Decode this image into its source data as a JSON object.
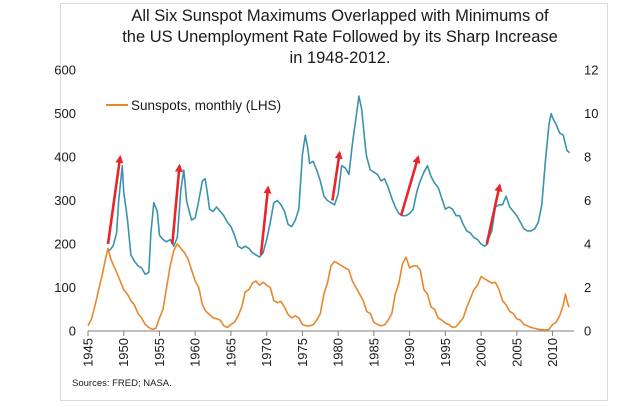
{
  "chart_data": {
    "type": "line",
    "title_lines": [
      "All Six Sunspot Maximums Overlapped with Minimums of",
      "the US Unemployment Rate Followed by its Sharp Increase",
      "in 1948-2012."
    ],
    "x_ticks": [
      "1945",
      "1950",
      "1955",
      "1960",
      "1965",
      "1970",
      "1975",
      "1980",
      "1985",
      "1990",
      "1995",
      "2000",
      "2005",
      "2010"
    ],
    "xlim": [
      1945,
      2013
    ],
    "y_left": {
      "lim": [
        0,
        600
      ],
      "ticks": [
        "0",
        "100",
        "200",
        "300",
        "400",
        "500",
        "600"
      ]
    },
    "y_right": {
      "lim": [
        0,
        12
      ],
      "ticks": [
        "0",
        "2",
        "4",
        "6",
        "8",
        "10",
        "12"
      ]
    },
    "legend": {
      "position": "top-left",
      "label": "Sunspots, monthly (LHS)"
    },
    "source": "Sources:  FRED; NASA.",
    "colors": {
      "sunspots": "#e8872b",
      "unemployment": "#3a93ad",
      "arrows": "#e8262a"
    },
    "series": [
      {
        "name": "Sunspots, monthly (LHS)",
        "axis": "left",
        "points": [
          [
            1945.0,
            12
          ],
          [
            1945.5,
            28
          ],
          [
            1946.0,
            60
          ],
          [
            1946.5,
            95
          ],
          [
            1947.0,
            130
          ],
          [
            1947.5,
            170
          ],
          [
            1947.8,
            190
          ],
          [
            1948.2,
            165
          ],
          [
            1948.6,
            150
          ],
          [
            1949.0,
            135
          ],
          [
            1949.5,
            115
          ],
          [
            1950.0,
            95
          ],
          [
            1950.5,
            85
          ],
          [
            1951.0,
            70
          ],
          [
            1951.5,
            60
          ],
          [
            1952.0,
            40
          ],
          [
            1952.5,
            30
          ],
          [
            1953.0,
            15
          ],
          [
            1953.5,
            8
          ],
          [
            1954.0,
            4
          ],
          [
            1954.5,
            6
          ],
          [
            1955.0,
            30
          ],
          [
            1955.5,
            50
          ],
          [
            1956.0,
            100
          ],
          [
            1956.5,
            150
          ],
          [
            1957.0,
            185
          ],
          [
            1957.5,
            200
          ],
          [
            1958.0,
            190
          ],
          [
            1958.5,
            180
          ],
          [
            1959.0,
            165
          ],
          [
            1959.5,
            140
          ],
          [
            1960.0,
            115
          ],
          [
            1960.5,
            100
          ],
          [
            1961.0,
            60
          ],
          [
            1961.5,
            45
          ],
          [
            1962.0,
            38
          ],
          [
            1962.5,
            30
          ],
          [
            1963.0,
            28
          ],
          [
            1963.5,
            25
          ],
          [
            1964.0,
            12
          ],
          [
            1964.5,
            8
          ],
          [
            1965.0,
            15
          ],
          [
            1965.5,
            20
          ],
          [
            1966.0,
            35
          ],
          [
            1966.5,
            55
          ],
          [
            1967.0,
            90
          ],
          [
            1967.5,
            95
          ],
          [
            1968.0,
            110
          ],
          [
            1968.5,
            115
          ],
          [
            1969.0,
            105
          ],
          [
            1969.5,
            112
          ],
          [
            1970.0,
            105
          ],
          [
            1970.5,
            100
          ],
          [
            1971.0,
            70
          ],
          [
            1971.5,
            65
          ],
          [
            1972.0,
            68
          ],
          [
            1972.5,
            55
          ],
          [
            1973.0,
            38
          ],
          [
            1973.5,
            30
          ],
          [
            1974.0,
            35
          ],
          [
            1974.5,
            30
          ],
          [
            1975.0,
            15
          ],
          [
            1975.5,
            12
          ],
          [
            1976.0,
            12
          ],
          [
            1976.5,
            14
          ],
          [
            1977.0,
            25
          ],
          [
            1977.5,
            40
          ],
          [
            1978.0,
            85
          ],
          [
            1978.5,
            110
          ],
          [
            1979.0,
            150
          ],
          [
            1979.5,
            160
          ],
          [
            1980.0,
            155
          ],
          [
            1980.5,
            150
          ],
          [
            1981.0,
            145
          ],
          [
            1981.5,
            140
          ],
          [
            1982.0,
            115
          ],
          [
            1982.5,
            100
          ],
          [
            1983.0,
            85
          ],
          [
            1983.5,
            70
          ],
          [
            1984.0,
            45
          ],
          [
            1984.5,
            40
          ],
          [
            1985.0,
            20
          ],
          [
            1985.5,
            15
          ],
          [
            1986.0,
            12
          ],
          [
            1986.5,
            14
          ],
          [
            1987.0,
            25
          ],
          [
            1987.5,
            40
          ],
          [
            1988.0,
            85
          ],
          [
            1988.5,
            110
          ],
          [
            1989.0,
            155
          ],
          [
            1989.5,
            170
          ],
          [
            1990.0,
            145
          ],
          [
            1990.5,
            150
          ],
          [
            1991.0,
            150
          ],
          [
            1991.5,
            140
          ],
          [
            1992.0,
            95
          ],
          [
            1992.5,
            85
          ],
          [
            1993.0,
            55
          ],
          [
            1993.5,
            50
          ],
          [
            1994.0,
            30
          ],
          [
            1994.5,
            25
          ],
          [
            1995.0,
            18
          ],
          [
            1995.5,
            15
          ],
          [
            1996.0,
            8
          ],
          [
            1996.5,
            10
          ],
          [
            1997.0,
            20
          ],
          [
            1997.5,
            30
          ],
          [
            1998.0,
            55
          ],
          [
            1998.5,
            75
          ],
          [
            1999.0,
            95
          ],
          [
            1999.5,
            105
          ],
          [
            2000.0,
            125
          ],
          [
            2000.5,
            120
          ],
          [
            2001.0,
            115
          ],
          [
            2001.5,
            110
          ],
          [
            2002.0,
            112
          ],
          [
            2002.5,
            95
          ],
          [
            2003.0,
            70
          ],
          [
            2003.5,
            60
          ],
          [
            2004.0,
            45
          ],
          [
            2004.5,
            40
          ],
          [
            2005.0,
            28
          ],
          [
            2005.5,
            25
          ],
          [
            2006.0,
            15
          ],
          [
            2006.5,
            12
          ],
          [
            2007.0,
            8
          ],
          [
            2007.5,
            6
          ],
          [
            2008.0,
            4
          ],
          [
            2008.5,
            3
          ],
          [
            2009.0,
            2
          ],
          [
            2009.5,
            4
          ],
          [
            2010.0,
            15
          ],
          [
            2010.5,
            20
          ],
          [
            2011.0,
            35
          ],
          [
            2011.5,
            60
          ],
          [
            2011.8,
            85
          ],
          [
            2012.0,
            70
          ],
          [
            2012.3,
            55
          ]
        ]
      },
      {
        "name": "",
        "axis": "right",
        "points": [
          [
            1948.0,
            3.7
          ],
          [
            1948.5,
            3.9
          ],
          [
            1949.0,
            4.5
          ],
          [
            1949.3,
            6.0
          ],
          [
            1949.8,
            7.6
          ],
          [
            1950.0,
            6.4
          ],
          [
            1950.5,
            5.2
          ],
          [
            1951.0,
            3.5
          ],
          [
            1951.5,
            3.2
          ],
          [
            1952.0,
            3.0
          ],
          [
            1952.5,
            2.9
          ],
          [
            1953.0,
            2.6
          ],
          [
            1953.5,
            2.7
          ],
          [
            1953.8,
            4.5
          ],
          [
            1954.2,
            5.9
          ],
          [
            1954.7,
            5.5
          ],
          [
            1955.0,
            4.4
          ],
          [
            1955.5,
            4.2
          ],
          [
            1956.0,
            4.1
          ],
          [
            1956.5,
            4.2
          ],
          [
            1957.0,
            3.9
          ],
          [
            1957.5,
            4.3
          ],
          [
            1958.0,
            6.5
          ],
          [
            1958.4,
            7.4
          ],
          [
            1958.8,
            6.0
          ],
          [
            1959.0,
            5.7
          ],
          [
            1959.5,
            5.1
          ],
          [
            1960.0,
            5.2
          ],
          [
            1960.5,
            6.0
          ],
          [
            1961.0,
            6.9
          ],
          [
            1961.4,
            7.0
          ],
          [
            1961.8,
            6.1
          ],
          [
            1962.0,
            5.6
          ],
          [
            1962.5,
            5.5
          ],
          [
            1963.0,
            5.7
          ],
          [
            1963.5,
            5.5
          ],
          [
            1964.0,
            5.3
          ],
          [
            1964.5,
            5.0
          ],
          [
            1965.0,
            4.8
          ],
          [
            1965.5,
            4.4
          ],
          [
            1966.0,
            3.9
          ],
          [
            1966.5,
            3.8
          ],
          [
            1967.0,
            3.9
          ],
          [
            1967.5,
            3.8
          ],
          [
            1968.0,
            3.6
          ],
          [
            1968.5,
            3.5
          ],
          [
            1969.0,
            3.4
          ],
          [
            1969.5,
            3.6
          ],
          [
            1970.0,
            4.2
          ],
          [
            1970.5,
            5.0
          ],
          [
            1971.0,
            5.9
          ],
          [
            1971.5,
            6.0
          ],
          [
            1972.0,
            5.8
          ],
          [
            1972.5,
            5.5
          ],
          [
            1973.0,
            4.9
          ],
          [
            1973.5,
            4.8
          ],
          [
            1974.0,
            5.1
          ],
          [
            1974.5,
            5.6
          ],
          [
            1975.0,
            8.1
          ],
          [
            1975.4,
            9.0
          ],
          [
            1975.8,
            8.3
          ],
          [
            1976.0,
            7.7
          ],
          [
            1976.5,
            7.8
          ],
          [
            1977.0,
            7.4
          ],
          [
            1977.5,
            6.9
          ],
          [
            1978.0,
            6.2
          ],
          [
            1978.5,
            6.0
          ],
          [
            1979.0,
            5.9
          ],
          [
            1979.5,
            5.8
          ],
          [
            1980.0,
            6.3
          ],
          [
            1980.5,
            7.6
          ],
          [
            1981.0,
            7.5
          ],
          [
            1981.5,
            7.2
          ],
          [
            1982.0,
            8.6
          ],
          [
            1982.5,
            9.8
          ],
          [
            1982.9,
            10.8
          ],
          [
            1983.3,
            10.2
          ],
          [
            1983.8,
            8.5
          ],
          [
            1984.0,
            8.0
          ],
          [
            1984.5,
            7.4
          ],
          [
            1985.0,
            7.3
          ],
          [
            1985.5,
            7.2
          ],
          [
            1986.0,
            6.9
          ],
          [
            1986.5,
            7.0
          ],
          [
            1987.0,
            6.6
          ],
          [
            1987.5,
            6.1
          ],
          [
            1988.0,
            5.7
          ],
          [
            1988.5,
            5.4
          ],
          [
            1989.0,
            5.3
          ],
          [
            1989.5,
            5.3
          ],
          [
            1990.0,
            5.4
          ],
          [
            1990.5,
            5.6
          ],
          [
            1991.0,
            6.4
          ],
          [
            1991.5,
            6.9
          ],
          [
            1992.0,
            7.3
          ],
          [
            1992.5,
            7.6
          ],
          [
            1993.0,
            7.1
          ],
          [
            1993.5,
            6.8
          ],
          [
            1994.0,
            6.6
          ],
          [
            1994.5,
            6.1
          ],
          [
            1995.0,
            5.6
          ],
          [
            1995.5,
            5.7
          ],
          [
            1996.0,
            5.6
          ],
          [
            1996.5,
            5.3
          ],
          [
            1997.0,
            5.3
          ],
          [
            1997.5,
            4.9
          ],
          [
            1998.0,
            4.6
          ],
          [
            1998.5,
            4.5
          ],
          [
            1999.0,
            4.3
          ],
          [
            1999.5,
            4.2
          ],
          [
            2000.0,
            4.0
          ],
          [
            2000.5,
            3.9
          ],
          [
            2000.9,
            4.0
          ],
          [
            2001.0,
            4.2
          ],
          [
            2001.5,
            4.6
          ],
          [
            2002.0,
            5.7
          ],
          [
            2002.5,
            5.8
          ],
          [
            2003.0,
            5.8
          ],
          [
            2003.5,
            6.2
          ],
          [
            2004.0,
            5.7
          ],
          [
            2004.5,
            5.5
          ],
          [
            2005.0,
            5.3
          ],
          [
            2005.5,
            5.0
          ],
          [
            2006.0,
            4.7
          ],
          [
            2006.5,
            4.6
          ],
          [
            2007.0,
            4.6
          ],
          [
            2007.5,
            4.7
          ],
          [
            2008.0,
            5.0
          ],
          [
            2008.5,
            5.8
          ],
          [
            2009.0,
            7.8
          ],
          [
            2009.5,
            9.5
          ],
          [
            2009.8,
            10.0
          ],
          [
            2010.0,
            9.8
          ],
          [
            2010.5,
            9.5
          ],
          [
            2011.0,
            9.1
          ],
          [
            2011.5,
            9.0
          ],
          [
            2012.0,
            8.3
          ],
          [
            2012.4,
            8.2
          ]
        ]
      }
    ],
    "arrows": [
      {
        "from": [
          1947.8,
          200
        ],
        "to": [
          1949.5,
          400
        ]
      },
      {
        "from": [
          1956.8,
          200
        ],
        "to": [
          1957.8,
          380
        ]
      },
      {
        "from": [
          1969.2,
          175
        ],
        "to": [
          1970.2,
          330
        ]
      },
      {
        "from": [
          1979.2,
          300
        ],
        "to": [
          1980.2,
          410
        ]
      },
      {
        "from": [
          1988.8,
          265
        ],
        "to": [
          1991.2,
          400
        ]
      },
      {
        "from": [
          2000.8,
          200
        ],
        "to": [
          2002.6,
          335
        ]
      }
    ]
  }
}
